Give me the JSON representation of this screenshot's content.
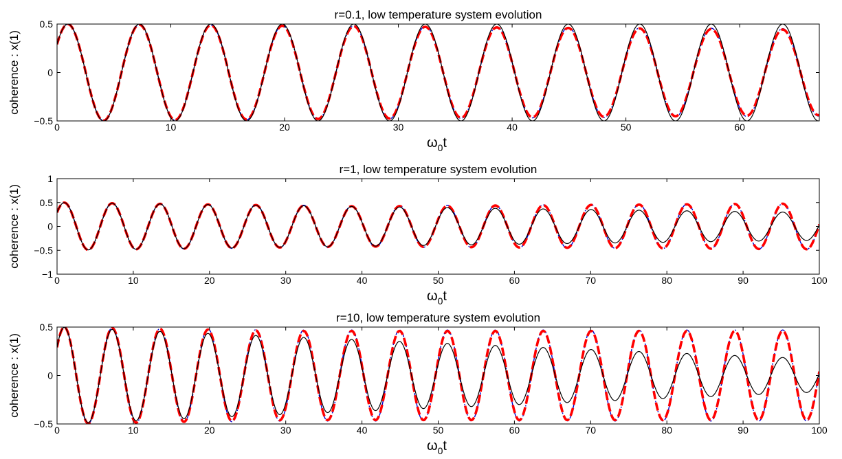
{
  "chart_data": [
    {
      "type": "line",
      "title": "r=0.1, low temperature system evolution",
      "xlabel_main": "ω",
      "xlabel_sub": "0",
      "xlabel_tail": "t",
      "ylabel": "coherence : x(1)",
      "xlim": [
        0,
        67
      ],
      "ylim": [
        -0.5,
        0.5
      ],
      "xticks": [
        0,
        10,
        20,
        30,
        40,
        50,
        60
      ],
      "yticks": [
        -0.5,
        0,
        0.5
      ],
      "xtick_labels": [
        "0",
        "10",
        "20",
        "30",
        "40",
        "50",
        "60"
      ],
      "ytick_labels": [
        "−0.5",
        "0",
        "0.5"
      ],
      "omega": 1.0,
      "phase": 0.62,
      "series": [
        {
          "style": "solid",
          "color": "#000000",
          "amplitude": [
            [
              0,
              0.5
            ],
            [
              67,
              0.5
            ]
          ]
        },
        {
          "style": "dash",
          "color": "#ff0000",
          "amplitude": [
            [
              0,
              0.5
            ],
            [
              67,
              0.44
            ]
          ]
        },
        {
          "style": "dashdot",
          "color": "#0000cc",
          "amplitude": [
            [
              0,
              0.5
            ],
            [
              67,
              0.45
            ]
          ]
        }
      ]
    },
    {
      "type": "line",
      "title": "r=1, low temperature system evolution",
      "xlabel_main": "ω",
      "xlabel_sub": "0",
      "xlabel_tail": "t",
      "ylabel": "coherence : x(1)",
      "xlim": [
        0,
        100
      ],
      "ylim": [
        -1,
        1
      ],
      "xticks": [
        0,
        10,
        20,
        30,
        40,
        50,
        60,
        70,
        80,
        90,
        100
      ],
      "yticks": [
        -1,
        -0.5,
        0,
        0.5,
        1
      ],
      "xtick_labels": [
        "0",
        "10",
        "20",
        "30",
        "40",
        "50",
        "60",
        "70",
        "80",
        "90",
        "100"
      ],
      "ytick_labels": [
        "−1",
        "−0.5",
        "0",
        "0.5",
        "1"
      ],
      "omega": 1.0,
      "phase": 0.62,
      "series": [
        {
          "style": "solid",
          "color": "#000000",
          "amplitude": [
            [
              0,
              0.5
            ],
            [
              100,
              0.29
            ]
          ]
        },
        {
          "style": "dash",
          "color": "#ff0000",
          "amplitude": [
            [
              0,
              0.5
            ],
            [
              40,
              0.42
            ],
            [
              100,
              0.48
            ]
          ]
        },
        {
          "style": "dashdot",
          "color": "#0000cc",
          "amplitude": [
            [
              0,
              0.5
            ],
            [
              40,
              0.43
            ],
            [
              100,
              0.48
            ]
          ]
        }
      ]
    },
    {
      "type": "line",
      "title": "r=10, low temperature system evolution",
      "xlabel_main": "ω",
      "xlabel_sub": "0",
      "xlabel_tail": "t",
      "ylabel": "coherence : x(1)",
      "xlim": [
        0,
        100
      ],
      "ylim": [
        -0.5,
        0.5
      ],
      "xticks": [
        0,
        10,
        20,
        30,
        40,
        50,
        60,
        70,
        80,
        90,
        100
      ],
      "yticks": [
        -0.5,
        0,
        0.5
      ],
      "xtick_labels": [
        "0",
        "10",
        "20",
        "30",
        "40",
        "50",
        "60",
        "70",
        "80",
        "90",
        "100"
      ],
      "ytick_labels": [
        "−0.5",
        "0",
        "0.5"
      ],
      "omega": 1.0,
      "phase": 0.62,
      "series": [
        {
          "style": "solid",
          "color": "#000000",
          "amplitude": [
            [
              0,
              0.5
            ],
            [
              100,
              0.17
            ]
          ]
        },
        {
          "style": "dash",
          "color": "#ff0000",
          "amplitude": [
            [
              0,
              0.5
            ],
            [
              30,
              0.46
            ],
            [
              100,
              0.46
            ]
          ]
        },
        {
          "style": "dashdot",
          "color": "#0000cc",
          "amplitude": [
            [
              0,
              0.5
            ],
            [
              30,
              0.47
            ],
            [
              100,
              0.47
            ]
          ]
        }
      ]
    }
  ]
}
